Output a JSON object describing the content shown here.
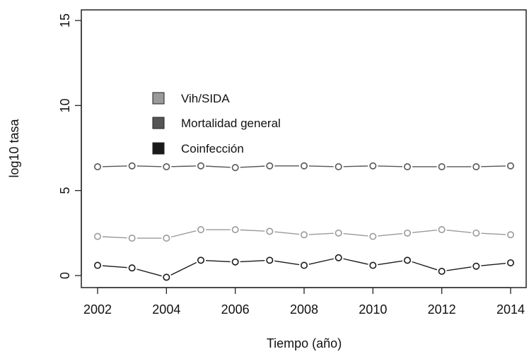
{
  "chart_data": {
    "type": "line",
    "title": "",
    "xlabel": "Tiempo (año)",
    "ylabel": "log10 tasa",
    "x": [
      2002,
      2003,
      2004,
      2005,
      2006,
      2007,
      2008,
      2009,
      2010,
      2011,
      2012,
      2013,
      2014
    ],
    "x_ticks": [
      "2002",
      "2004",
      "2006",
      "2008",
      "2010",
      "2012",
      "2014"
    ],
    "y_ticks": [
      "0",
      "5",
      "10",
      "15"
    ],
    "xlim": [
      2002,
      2014
    ],
    "ylim": [
      0,
      15
    ],
    "grid": false,
    "legend_placement": "upper-left",
    "series": [
      {
        "name": "Vih/SIDA",
        "color": "#9a9a9a",
        "values": [
          2.3,
          2.2,
          2.2,
          2.7,
          2.7,
          2.6,
          2.4,
          2.5,
          2.3,
          2.5,
          2.7,
          2.5,
          2.4
        ]
      },
      {
        "name": "Mortalidad general",
        "color": "#555555",
        "values": [
          6.4,
          6.45,
          6.4,
          6.45,
          6.35,
          6.45,
          6.45,
          6.4,
          6.45,
          6.4,
          6.4,
          6.4,
          6.45
        ]
      },
      {
        "name": "Coinfección",
        "color": "#1a1a1a",
        "values": [
          0.6,
          0.45,
          -0.1,
          0.9,
          0.8,
          0.9,
          0.6,
          1.05,
          0.6,
          0.9,
          0.25,
          0.55,
          0.75
        ]
      }
    ]
  }
}
